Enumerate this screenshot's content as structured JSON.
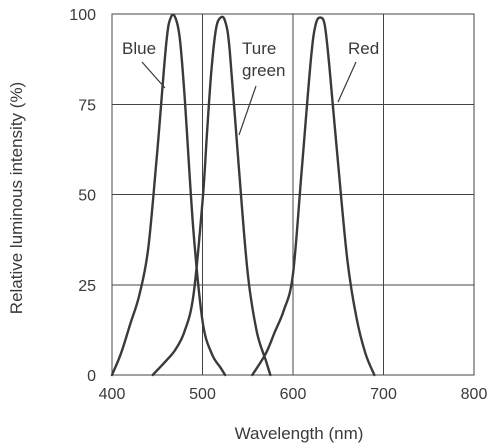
{
  "chart_data": {
    "type": "line",
    "title": "",
    "xlabel": "Wavelength (nm)",
    "ylabel": "Relative luminous intensity (%)",
    "xlim": [
      400,
      800
    ],
    "ylim": [
      0,
      100
    ],
    "xticks": [
      400,
      500,
      600,
      700,
      800
    ],
    "yticks": [
      0,
      25,
      50,
      75,
      100
    ],
    "grid": true,
    "series": [
      {
        "name": "Blue",
        "label_lines": [
          "Blue"
        ],
        "x": [
          400,
          410,
          420,
          430,
          440,
          450,
          460,
          465,
          470,
          475,
          480,
          490,
          500,
          510,
          520,
          525
        ],
        "y": [
          0,
          6,
          14,
          22,
          35,
          62,
          92,
          99,
          99,
          93,
          78,
          40,
          15,
          6,
          2,
          0
        ]
      },
      {
        "name": "Ture green",
        "label_lines": [
          "Ture",
          "green"
        ],
        "x": [
          445,
          460,
          470,
          480,
          490,
          500,
          505,
          510,
          515,
          520,
          525,
          530,
          540,
          550,
          560,
          570,
          575
        ],
        "y": [
          0,
          4,
          7,
          12,
          22,
          48,
          67,
          85,
          96,
          99,
          98,
          90,
          58,
          28,
          12,
          4,
          0
        ]
      },
      {
        "name": "Red",
        "label_lines": [
          "Red"
        ],
        "x": [
          555,
          570,
          580,
          590,
          600,
          610,
          620,
          625,
          630,
          635,
          640,
          650,
          660,
          670,
          680,
          690
        ],
        "y": [
          0,
          6,
          12,
          18,
          28,
          58,
          88,
          97,
          99,
          97,
          86,
          58,
          32,
          16,
          6,
          0
        ]
      }
    ]
  }
}
